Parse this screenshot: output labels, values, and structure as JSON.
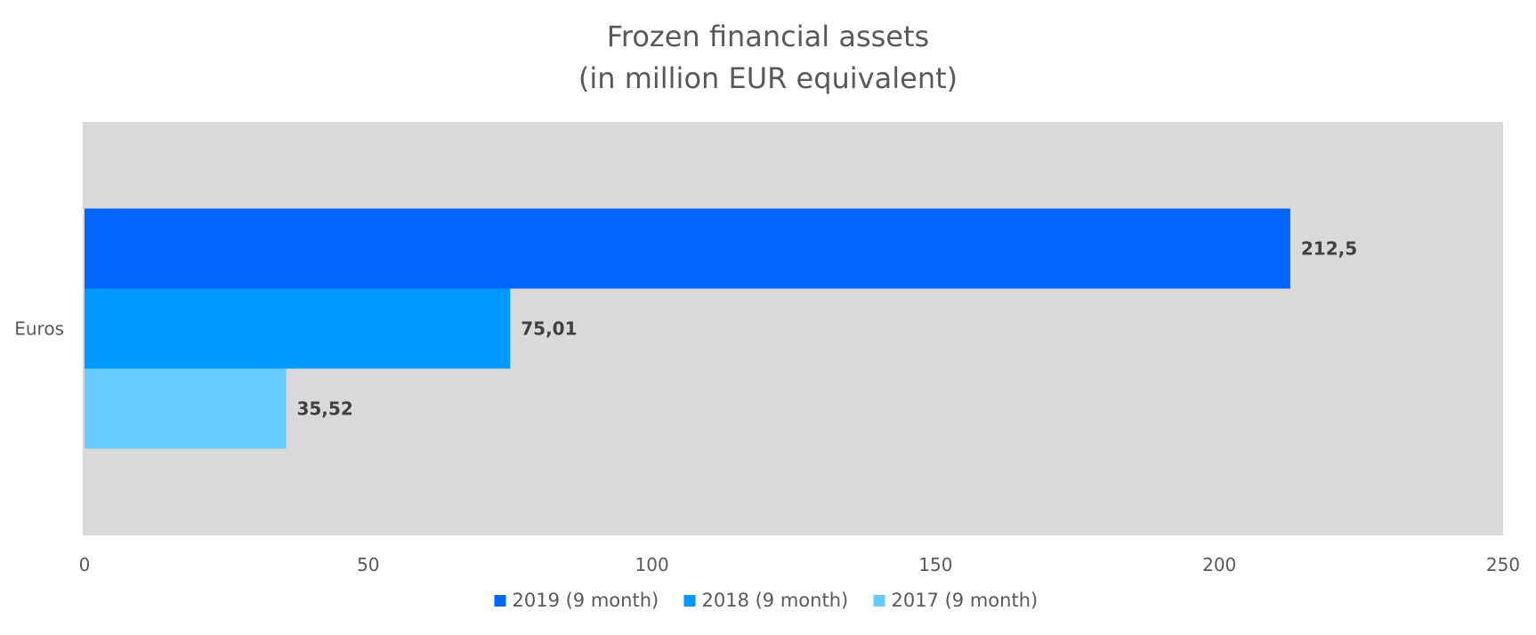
{
  "chart_data": {
    "type": "bar",
    "orientation": "horizontal",
    "title": [
      "Frozen financial assets",
      "(in million EUR equivalent)"
    ],
    "categories": [
      "Euros"
    ],
    "series": [
      {
        "name": "2019 (9 month)",
        "values": [
          212.5
        ],
        "label": "212,5",
        "color": "#0066FF"
      },
      {
        "name": "2018 (9 month)",
        "values": [
          75.01
        ],
        "label": "75,01",
        "color": "#0099FF"
      },
      {
        "name": "2017 (9 month)",
        "values": [
          35.52
        ],
        "label": "35,52",
        "color": "#66CCFF"
      }
    ],
    "xlim": [
      0,
      250
    ],
    "xticks": [
      0,
      50,
      100,
      150,
      200,
      250
    ],
    "xtick_labels": [
      "0",
      "50",
      "100",
      "150",
      "200",
      "250"
    ],
    "plot_background": "#D9D9D9",
    "grid": false,
    "legend_position": "bottom"
  }
}
